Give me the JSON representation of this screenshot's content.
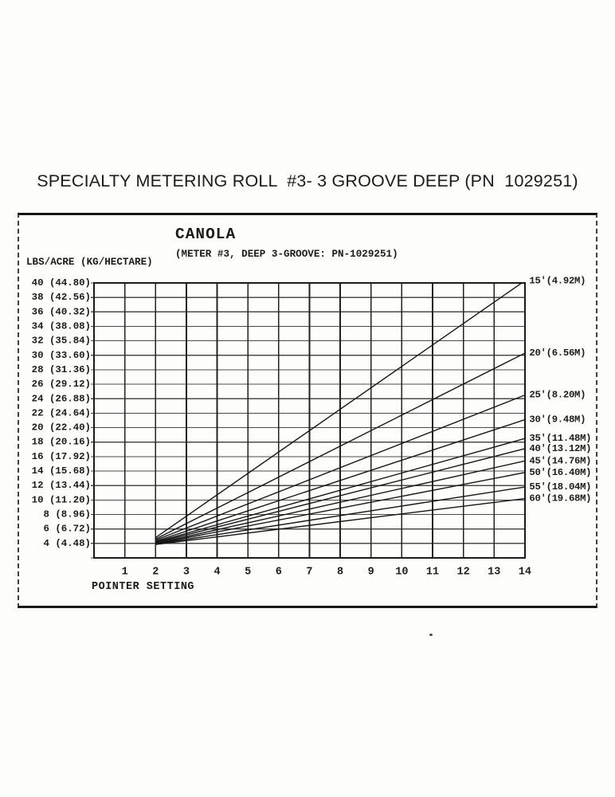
{
  "document": {
    "title": "SPECIALTY METERING ROLL  #3- 3 GROOVE DEEP (PN  1029251)"
  },
  "colors": {
    "ink": "#1b1b1b",
    "grid": "#4a4a4a",
    "paper": "#fdfdfc"
  },
  "chart_data": {
    "type": "line",
    "title": "CANOLA",
    "subtitle": "(METER #3, DEEP 3-GROOVE: PN-1029251)",
    "ylabel": "LBS/ACRE (KG/HECTARE)",
    "xlabel": "POINTER SETTING",
    "xlim": [
      0,
      14
    ],
    "ylim": [
      2,
      40
    ],
    "grid": true,
    "legend_position": "right-line-end-labels",
    "x_ticks": [
      1,
      2,
      3,
      4,
      5,
      6,
      7,
      8,
      9,
      10,
      11,
      12,
      13,
      14
    ],
    "y_ticks": [
      {
        "value": 40,
        "label": "40 (44.80)"
      },
      {
        "value": 38,
        "label": "38 (42.56)"
      },
      {
        "value": 36,
        "label": "36 (40.32)"
      },
      {
        "value": 34,
        "label": "34 (38.08)"
      },
      {
        "value": 32,
        "label": "32 (35.84)"
      },
      {
        "value": 30,
        "label": "30 (33.60)"
      },
      {
        "value": 28,
        "label": "28 (31.36)"
      },
      {
        "value": 26,
        "label": "26 (29.12)"
      },
      {
        "value": 24,
        "label": "24 (26.88)"
      },
      {
        "value": 22,
        "label": "22 (24.64)"
      },
      {
        "value": 20,
        "label": "20 (22.40)"
      },
      {
        "value": 18,
        "label": "18 (20.16)"
      },
      {
        "value": 16,
        "label": "16 (17.92)"
      },
      {
        "value": 14,
        "label": "14 (15.68)"
      },
      {
        "value": 12,
        "label": "12 (13.44)"
      },
      {
        "value": 10,
        "label": "10 (11.20)"
      },
      {
        "value": 8,
        "label": "8 (8.96)"
      },
      {
        "value": 6,
        "label": "6 (6.72)"
      },
      {
        "value": 4,
        "label": "4 (4.48)"
      }
    ],
    "series": [
      {
        "name": "15'(4.92M)",
        "x": [
          2,
          14
        ],
        "y": [
          4.8,
          40.3
        ]
      },
      {
        "name": "20'(6.56M)",
        "x": [
          2,
          14
        ],
        "y": [
          4.6,
          30.3
        ]
      },
      {
        "name": "25'(8.20M)",
        "x": [
          2,
          14
        ],
        "y": [
          4.45,
          24.5
        ]
      },
      {
        "name": "30'(9.48M)",
        "x": [
          2,
          14
        ],
        "y": [
          4.3,
          21.1
        ]
      },
      {
        "name": "35'(11.48M)",
        "x": [
          2,
          14
        ],
        "y": [
          4.2,
          18.5
        ]
      },
      {
        "name": "40'(13.12M)",
        "x": [
          2,
          14
        ],
        "y": [
          4.1,
          17.1
        ]
      },
      {
        "name": "45'(14.76M)",
        "x": [
          2,
          14
        ],
        "y": [
          4.0,
          15.4
        ]
      },
      {
        "name": "50'(16.40M)",
        "x": [
          2,
          14
        ],
        "y": [
          3.95,
          13.8
        ]
      },
      {
        "name": "55'(18.04M)",
        "x": [
          2,
          14
        ],
        "y": [
          3.9,
          11.8
        ]
      },
      {
        "name": "60'(19.68M)",
        "x": [
          2,
          14
        ],
        "y": [
          3.85,
          10.2
        ]
      }
    ]
  }
}
